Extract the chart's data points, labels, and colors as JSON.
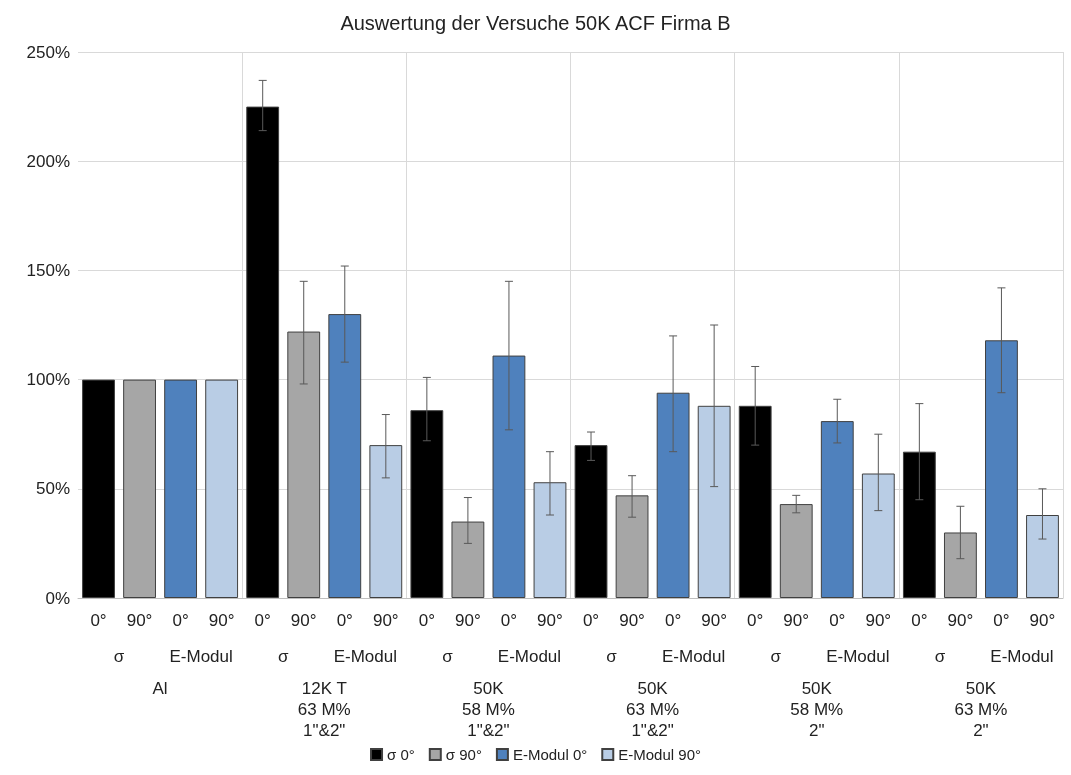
{
  "chart_data": {
    "type": "bar",
    "title": "Auswertung der Versuche 50K ACF Firma B",
    "categories": [
      "0°",
      "90°",
      "0°",
      "90°",
      "0°",
      "90°",
      "0°",
      "90°",
      "0°",
      "90°",
      "0°",
      "90°",
      "0°",
      "90°",
      "0°",
      "90°",
      "0°",
      "90°",
      "0°",
      "90°",
      "0°",
      "90°",
      "0°",
      "90°"
    ],
    "annotations": [
      "σ",
      "E-Modul",
      "σ",
      "E-Modul",
      "σ",
      "E-Modul",
      "σ",
      "E-Modul",
      "σ",
      "E-Modul",
      "σ",
      "E-Modul",
      "Al",
      "12K T\n63 M%\n1\"&2\"",
      "50K\n58 M%\n1\"&2\"",
      "50K\n63 M%\n1\"&2\"",
      "50K\n58 M%\n2\"",
      "50K\n63 M%\n2\""
    ],
    "series": [
      {
        "name": "σ 0°",
        "color": "#000000",
        "values": [
          100,
          null,
          null,
          null,
          225,
          null,
          null,
          null,
          86,
          null,
          null,
          null,
          70,
          null,
          null,
          null,
          88,
          null,
          null,
          null,
          67,
          null,
          null,
          null
        ],
        "errors": [
          null,
          null,
          null,
          null,
          [
            214,
            237
          ],
          null,
          null,
          null,
          [
            72,
            101
          ],
          null,
          null,
          null,
          [
            63,
            76
          ],
          null,
          null,
          null,
          [
            70,
            106
          ],
          null,
          null,
          null,
          [
            45,
            89
          ],
          null,
          null,
          null
        ]
      },
      {
        "name": "σ 90°",
        "color": "#a6a6a6",
        "values": [
          null,
          100,
          null,
          null,
          null,
          122,
          null,
          null,
          null,
          35,
          null,
          null,
          null,
          47,
          null,
          null,
          null,
          43,
          null,
          null,
          null,
          30,
          null,
          null
        ],
        "errors": [
          null,
          null,
          null,
          null,
          null,
          [
            98,
            145
          ],
          null,
          null,
          null,
          [
            25,
            46
          ],
          null,
          null,
          null,
          [
            37,
            56
          ],
          null,
          null,
          null,
          [
            39,
            47
          ],
          null,
          null,
          null,
          [
            18,
            42
          ],
          null,
          null
        ]
      },
      {
        "name": "E-Modul 0°",
        "color": "#4f81bd",
        "values": [
          null,
          null,
          100,
          null,
          null,
          null,
          130,
          null,
          null,
          null,
          111,
          null,
          null,
          null,
          94,
          null,
          null,
          null,
          81,
          null,
          null,
          null,
          118,
          null
        ],
        "errors": [
          null,
          null,
          null,
          null,
          null,
          null,
          [
            108,
            152
          ],
          null,
          null,
          null,
          [
            77,
            145
          ],
          null,
          null,
          null,
          [
            67,
            120
          ],
          null,
          null,
          null,
          [
            71,
            91
          ],
          null,
          null,
          null,
          [
            94,
            142
          ],
          null
        ]
      },
      {
        "name": "E-Modul 90°",
        "color": "#b9cde5",
        "values": [
          null,
          null,
          null,
          100,
          null,
          null,
          null,
          70,
          null,
          null,
          null,
          53,
          null,
          null,
          null,
          88,
          null,
          null,
          null,
          57,
          null,
          null,
          null,
          38
        ],
        "errors": [
          null,
          null,
          null,
          null,
          null,
          null,
          null,
          [
            55,
            84
          ],
          null,
          null,
          null,
          [
            38,
            67
          ],
          null,
          null,
          null,
          [
            51,
            125
          ],
          null,
          null,
          null,
          [
            40,
            75
          ],
          null,
          null,
          null,
          [
            27,
            50
          ]
        ]
      }
    ],
    "ylim": [
      0,
      250
    ],
    "yticks": [
      {
        "value": 0,
        "label": "0%"
      },
      {
        "value": 50,
        "label": "50%"
      },
      {
        "value": 100,
        "label": "100%"
      },
      {
        "value": 150,
        "label": "150%"
      },
      {
        "value": 200,
        "label": "200%"
      },
      {
        "value": 250,
        "label": "250%"
      }
    ],
    "grid": true,
    "legend": "bottom"
  }
}
